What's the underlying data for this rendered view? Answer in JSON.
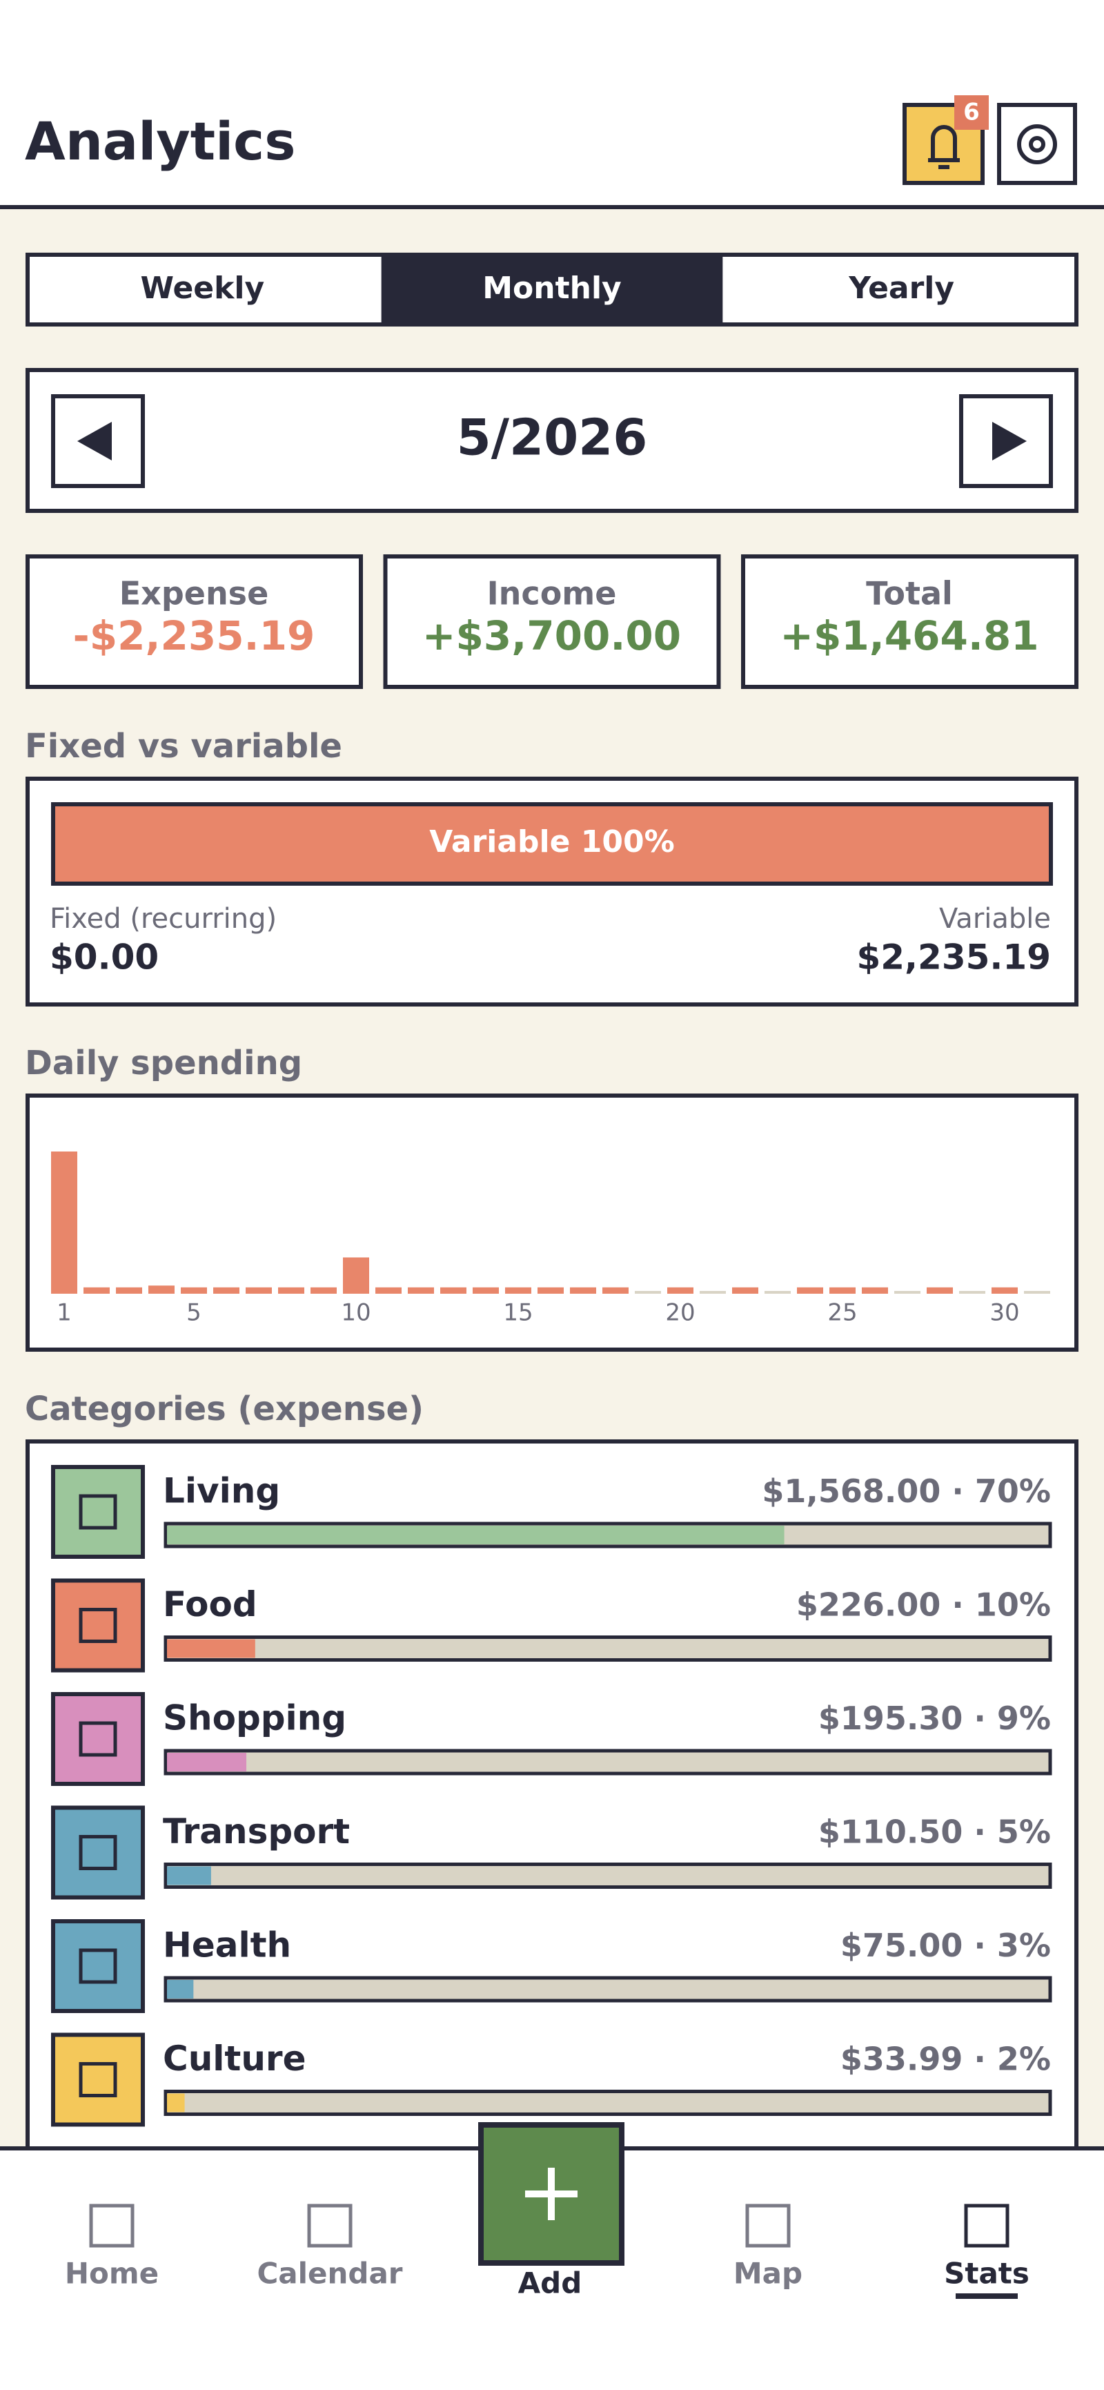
{
  "header": {
    "title": "Analytics",
    "badge": "6"
  },
  "tabs": {
    "items": [
      "Weekly",
      "Monthly",
      "Yearly"
    ],
    "active": 1
  },
  "period": {
    "label": "5/2026"
  },
  "summary": [
    {
      "label": "Expense",
      "amount": "-$2,235.19",
      "color": "#e8866a"
    },
    {
      "label": "Income",
      "amount": "+$3,700.00",
      "color": "#5e8a4d"
    },
    {
      "label": "Total",
      "amount": "+$1,464.81",
      "color": "#5e8a4d"
    }
  ],
  "fixed_variable": {
    "title": "Fixed vs variable",
    "bar_label": "Variable 100%",
    "variable_percent": 100,
    "fixed_label": "Fixed (recurring)",
    "fixed_amount": "$0.00",
    "variable_label": "Variable",
    "variable_amount": "$2,235.19",
    "color": "#e8866a"
  },
  "daily_spending": {
    "title": "Daily spending",
    "color": "#e8866a",
    "x": [
      1,
      2,
      3,
      4,
      5,
      6,
      7,
      8,
      9,
      10,
      11,
      12,
      13,
      14,
      15,
      16,
      17,
      18,
      19,
      20,
      21,
      22,
      23,
      24,
      25,
      26,
      27,
      28,
      29,
      30,
      31
    ],
    "values": [
      1568,
      70,
      70,
      90,
      70,
      70,
      70,
      70,
      70,
      400,
      70,
      70,
      70,
      70,
      70,
      70,
      70,
      70,
      0,
      70,
      0,
      70,
      0,
      70,
      70,
      70,
      0,
      70,
      0,
      70,
      0
    ],
    "xticks": [
      1,
      5,
      10,
      15,
      20,
      25,
      30
    ]
  },
  "categories": {
    "title": "Categories (expense)",
    "separator": " · ",
    "items": [
      {
        "name": "Living",
        "amount": 1568,
        "amount_label": "$1,568.00",
        "percent": 70,
        "percent_label": "70%",
        "color": "#9cc69b"
      },
      {
        "name": "Food",
        "amount": 226,
        "amount_label": "$226.00",
        "percent": 10,
        "percent_label": "10%",
        "color": "#e8866a"
      },
      {
        "name": "Shopping",
        "amount": 195.3,
        "amount_label": "$195.30",
        "percent": 9,
        "percent_label": "9%",
        "color": "#d88fbd"
      },
      {
        "name": "Transport",
        "amount": 110.5,
        "amount_label": "$110.50",
        "percent": 5,
        "percent_label": "5%",
        "color": "#6aa7bf"
      },
      {
        "name": "Health",
        "amount": 75,
        "amount_label": "$75.00",
        "percent": 3,
        "percent_label": "3%",
        "color": "#6aa7bf"
      },
      {
        "name": "Culture",
        "amount": 33.99,
        "amount_label": "$33.99",
        "percent": 2,
        "percent_label": "2%",
        "color": "#f4c85a"
      }
    ]
  },
  "nav": {
    "items": [
      "Home",
      "Calendar",
      "Add",
      "Map",
      "Stats"
    ],
    "active": 4
  }
}
